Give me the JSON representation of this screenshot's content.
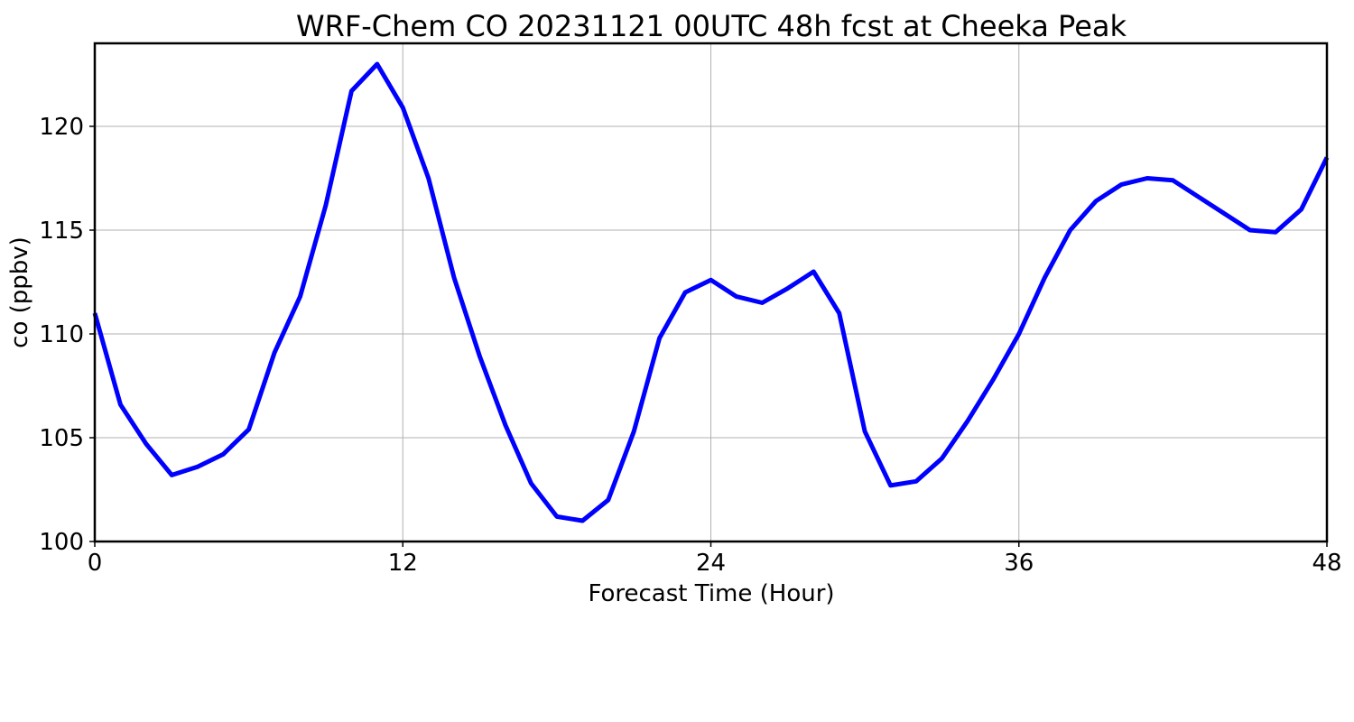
{
  "chart_data": {
    "type": "line",
    "title": "WRF-Chem CO  20231121 00UTC 48h fcst at Cheeka Peak",
    "xlabel": "Forecast Time (Hour)",
    "ylabel": "co  (ppbv)",
    "xlim": [
      0,
      48
    ],
    "ylim": [
      100,
      124
    ],
    "x_ticks": [
      0,
      12,
      24,
      36,
      48
    ],
    "y_ticks": [
      100,
      105,
      110,
      115,
      120
    ],
    "grid": true,
    "series": [
      {
        "color": "#0000ff",
        "x": [
          0,
          1,
          2,
          3,
          4,
          5,
          6,
          7,
          8,
          9,
          10,
          11,
          12,
          13,
          14,
          15,
          16,
          17,
          18,
          19,
          20,
          21,
          22,
          23,
          24,
          25,
          26,
          27,
          28,
          29,
          30,
          31,
          32,
          33,
          34,
          35,
          36,
          37,
          38,
          39,
          40,
          41,
          42,
          43,
          44,
          45,
          46,
          47,
          48
        ],
        "values": [
          111.0,
          106.6,
          104.7,
          103.2,
          103.6,
          104.2,
          105.4,
          109.1,
          111.8,
          116.2,
          121.7,
          123.0,
          120.9,
          117.5,
          112.7,
          108.9,
          105.6,
          102.8,
          101.2,
          101.0,
          102.0,
          105.3,
          109.8,
          112.0,
          112.6,
          111.8,
          111.5,
          112.2,
          113.0,
          111.0,
          105.3,
          102.7,
          102.9,
          104.0,
          105.8,
          107.8,
          110.0,
          112.7,
          115.0,
          116.4,
          117.2,
          117.5,
          117.4,
          116.6,
          115.8,
          115.0,
          114.9,
          116.0,
          118.5
        ]
      }
    ]
  }
}
